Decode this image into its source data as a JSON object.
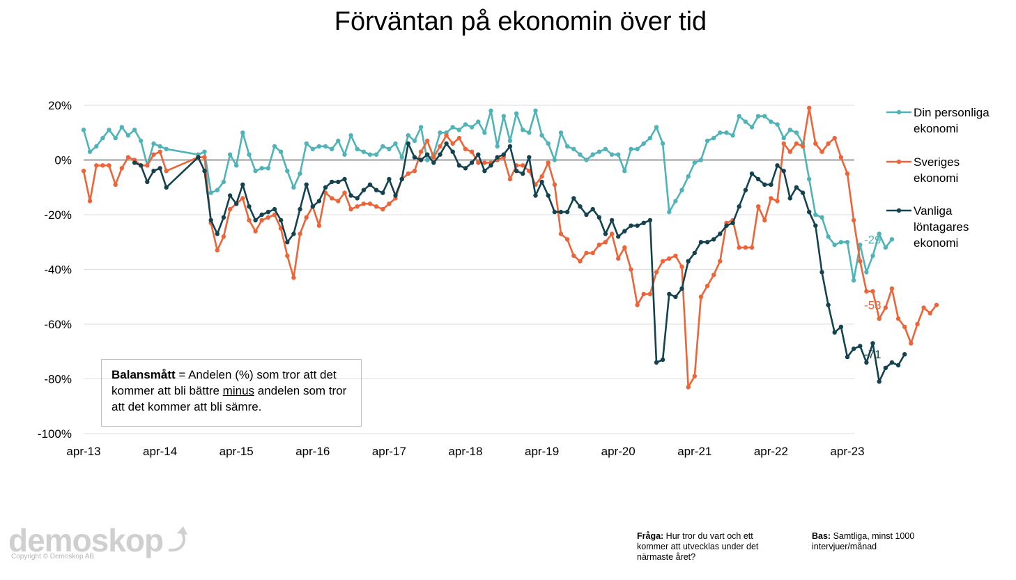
{
  "title": "Förväntan på ekonomin över tid",
  "chart_data": {
    "type": "line",
    "y_ticks": [
      "20%",
      "0%",
      "-20%",
      "-40%",
      "-60%",
      "-80%",
      "-100%"
    ],
    "y_tick_values": [
      20,
      0,
      -20,
      -40,
      -60,
      -80,
      -100
    ],
    "ylim": [
      -100,
      20
    ],
    "x_ticks": [
      "apr-13",
      "apr-14",
      "apr-15",
      "apr-16",
      "apr-17",
      "apr-18",
      "apr-19",
      "apr-20",
      "apr-21",
      "apr-22",
      "apr-23"
    ],
    "x_start": "2013-04",
    "grid": "horizontal",
    "legend_position": "right",
    "series": [
      {
        "name": "Din personliga ekonomi",
        "color": "#4fb3b8",
        "end_label": "-29",
        "values": [
          11,
          3,
          5,
          8,
          11,
          8,
          12,
          9,
          11,
          7,
          -2,
          6,
          5,
          4,
          null,
          null,
          null,
          null,
          2,
          3,
          -12,
          -11,
          -8,
          2,
          -2,
          10,
          2,
          -4,
          -3,
          -3,
          5,
          3,
          -4,
          -10,
          -5,
          6,
          4,
          5,
          5,
          4,
          7,
          2,
          9,
          4,
          3,
          2,
          2,
          5,
          4,
          6,
          1,
          9,
          7,
          12,
          0,
          2,
          10,
          10,
          12,
          11,
          13,
          12,
          14,
          10,
          18,
          5,
          16,
          7,
          17,
          11,
          10,
          18,
          9,
          6,
          0,
          10,
          5,
          4,
          2,
          0,
          2,
          3,
          4,
          2,
          2,
          -4,
          4,
          4,
          6,
          8,
          12,
          6,
          -19,
          -15,
          -11,
          -6,
          -1,
          0,
          7,
          8,
          10,
          10,
          9,
          16,
          14,
          12,
          16,
          16,
          14,
          13,
          8,
          11,
          10,
          6,
          -7,
          -20,
          -21,
          -28,
          -31,
          -30,
          -30,
          -44,
          -31,
          -41,
          -35,
          -27,
          -32,
          -29
        ]
      },
      {
        "name": "Sveriges ekonomi",
        "color": "#ec6438",
        "end_label": "-53",
        "values": [
          -4,
          -15,
          -2,
          -2,
          -2,
          -9,
          -3,
          1,
          0,
          -2,
          -2,
          2,
          3,
          -4,
          null,
          null,
          null,
          null,
          1,
          1,
          -23,
          -33,
          -28,
          -18,
          -16,
          -14,
          -22,
          -26,
          -22,
          -21,
          -20,
          -25,
          -35,
          -43,
          -27,
          -21,
          -17,
          -24,
          -12,
          -14,
          -15,
          -12,
          -18,
          -17,
          -16,
          -16,
          -17,
          -18,
          -16,
          -14,
          -7,
          -5,
          -4,
          3,
          7,
          1,
          5,
          9,
          6,
          8,
          4,
          3,
          -1,
          -1,
          -1,
          0,
          1,
          -7,
          -2,
          -2,
          -4,
          -9,
          -6,
          -1,
          -9,
          -27,
          -29,
          -35,
          -37,
          -34,
          -34,
          -31,
          -30,
          -27,
          -36,
          -32,
          -40,
          -53,
          -49,
          -49,
          -41,
          -37,
          -36,
          -35,
          -39,
          -83,
          -79,
          -50,
          -46,
          -42,
          -37,
          -23,
          -22,
          -32,
          -32,
          -32,
          -17,
          -22,
          -14,
          -15,
          6,
          3,
          6,
          5,
          19,
          6,
          3,
          6,
          8,
          1,
          -5,
          -22,
          -37,
          -48,
          -48,
          -58,
          -54,
          -47,
          -58,
          -61,
          -67,
          -60,
          -54,
          -56,
          -53
        ]
      },
      {
        "name": "Vanliga löntagares ekonomi",
        "color": "#14434f",
        "end_label": "-71",
        "values": [
          null,
          null,
          null,
          null,
          null,
          null,
          null,
          null,
          -1,
          -2,
          -8,
          -4,
          -3,
          -10,
          null,
          null,
          null,
          null,
          1,
          -4,
          -22,
          -27,
          -21,
          -13,
          -16,
          -9,
          -17,
          -22,
          -20,
          -19,
          -18,
          -22,
          -30,
          -27,
          -18,
          -9,
          -17,
          -15,
          -10,
          -8,
          -8,
          -7,
          -13,
          -14,
          -11,
          -9,
          -11,
          -12,
          -7,
          -13,
          -7,
          6,
          1,
          0,
          2,
          -1,
          2,
          6,
          3,
          -2,
          -3,
          -1,
          2,
          -4,
          -2,
          1,
          2,
          5,
          -4,
          -5,
          1,
          -13,
          -8,
          -13,
          -19,
          -19,
          -19,
          -14,
          -17,
          -20,
          -18,
          -21,
          -27,
          -22,
          -28,
          -26,
          -24,
          -24,
          -23,
          -22,
          -74,
          -73,
          -49,
          -50,
          -47,
          -37,
          -34,
          -30,
          -30,
          -29,
          -27,
          -24,
          -23,
          -17,
          -11,
          -5,
          -7,
          -9,
          -9,
          -2,
          -4,
          -14,
          -10,
          -12,
          -19,
          -24,
          -41,
          -53,
          -63,
          -61,
          -72,
          -69,
          -68,
          -74,
          -67,
          -81,
          -76,
          -74,
          -75,
          -71
        ]
      }
    ]
  },
  "legend": [
    {
      "label": "Din personliga\nekonomi",
      "color": "#4fb3b8"
    },
    {
      "label": "Sveriges\nekonomi",
      "color": "#ec6438"
    },
    {
      "label": "Vanliga\nlöntagares\nekonomi",
      "color": "#14434f"
    }
  ],
  "note": {
    "bold": "Balansmått",
    "text1": " = Andelen (%) som tror att det kommer att bli bättre ",
    "underline": "minus",
    "text2": " andelen som tror att det kommer att bli sämre."
  },
  "footer": {
    "question_label": "Fråga:",
    "question_text": " Hur tror du vart och ett kommer att utvecklas under det närmaste året?",
    "base_label": "Bas:",
    "base_text": " Samtliga, minst 1000 intervjuer/månad"
  },
  "logo": {
    "text": "demoskop",
    "copyright": "Copyright © Demoskop AB"
  }
}
